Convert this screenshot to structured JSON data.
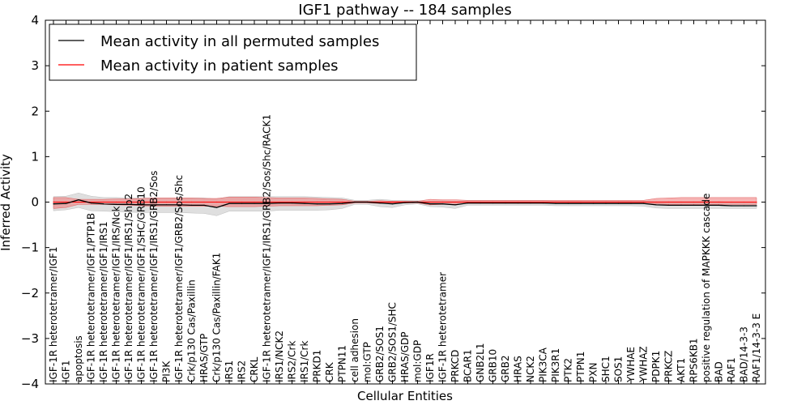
{
  "chart_data": {
    "type": "line",
    "title": "IGF1 pathway -- 184 samples",
    "xlabel": "Cellular Entities",
    "ylabel": "Inferred Activity",
    "ylim": [
      -4,
      4
    ],
    "yticks": [
      -4,
      -3,
      -2,
      -1,
      0,
      1,
      2,
      3,
      4
    ],
    "ytick_labels": [
      "−4",
      "−3",
      "−2",
      "−1",
      "0",
      "1",
      "2",
      "3",
      "4"
    ],
    "legend_position": "top-left",
    "categories": [
      "IGF-1R heterotetramer/IGF1",
      "IGF1",
      "apoptosis",
      "IGF-1R heterotetramer/IGF1/PTP1B",
      "IGF-1R heterotetramer/IGF1/IRS1",
      "IGF-1R heterotetramer/IGF1/IRS/Nck",
      "IGF-1R heterotetramer/IGF1/IRS1/Shp2",
      "IGF-1R heterotetramer/IGF1/SHC/GRB10",
      "IGF-1R heterotetramer/IGF1/IRS1/GRB2/Sos",
      "PI3K",
      "IGF-1R heterotetramer/IGF1/GRB2/Sos/Shc",
      "Crk/p130 Cas/Paxillin",
      "HRAS/GTP",
      "Crk/p130 Cas/Paxillin/FAK1",
      "IRS1",
      "IRS2",
      "CRKL",
      "IGF-1R heterotetramer/IGF1/IRS1/GRB2/Sos/Shc/RACK1",
      "IRS1/NCK2",
      "IRS2/Crk",
      "IRS1/Crk",
      "PRKD1",
      "CRK",
      "PTPN11",
      "cell adhesion",
      "mol:GTP",
      "GRB2/SOS1",
      "GRB2/SOS1/SHC",
      "HRAS/GDP",
      "mol:GDP",
      "IGF1R",
      "IGF-1R heterotetramer",
      "PRKCD",
      "BCAR1",
      "GNB2L1",
      "GRB10",
      "GRB2",
      "HRAS",
      "NCK2",
      "PIK3CA",
      "PIK3R1",
      "PTK2",
      "PTPN1",
      "PXN",
      "SHC1",
      "SOS1",
      "YWHAE",
      "YWHAZ",
      "PDPK1",
      "PRKCZ",
      "AKT1",
      "RPS6KB1",
      "positive regulation of MAPKKK cascade",
      "BAD",
      "RAF1",
      "BAD/14-3-3",
      "RAF1/14-3-3 E"
    ],
    "series": [
      {
        "name": "Mean activity in all permuted samples",
        "color": "#000000",
        "values": [
          -0.04,
          -0.03,
          0.05,
          -0.02,
          -0.04,
          -0.05,
          -0.05,
          -0.06,
          -0.06,
          -0.06,
          -0.06,
          -0.07,
          -0.07,
          -0.12,
          -0.03,
          -0.03,
          -0.03,
          -0.03,
          -0.02,
          -0.02,
          -0.03,
          -0.04,
          -0.04,
          -0.03,
          0.0,
          0.0,
          -0.02,
          -0.04,
          -0.01,
          0.0,
          -0.04,
          -0.04,
          -0.06,
          -0.02,
          -0.02,
          -0.02,
          -0.02,
          -0.02,
          -0.02,
          -0.02,
          -0.03,
          -0.03,
          -0.03,
          -0.03,
          -0.03,
          -0.03,
          -0.03,
          -0.03,
          -0.06,
          -0.07,
          -0.07,
          -0.07,
          -0.07,
          -0.07,
          -0.08,
          -0.08,
          -0.08
        ],
        "band_low": [
          -0.19,
          -0.17,
          -0.12,
          -0.19,
          -0.2,
          -0.21,
          -0.22,
          -0.23,
          -0.23,
          -0.23,
          -0.23,
          -0.24,
          -0.25,
          -0.3,
          -0.2,
          -0.2,
          -0.2,
          -0.2,
          -0.18,
          -0.18,
          -0.18,
          -0.18,
          -0.17,
          -0.14,
          -0.05,
          -0.05,
          -0.1,
          -0.12,
          -0.06,
          -0.04,
          -0.1,
          -0.11,
          -0.14,
          -0.07,
          -0.07,
          -0.07,
          -0.07,
          -0.07,
          -0.07,
          -0.07,
          -0.08,
          -0.08,
          -0.08,
          -0.08,
          -0.08,
          -0.08,
          -0.08,
          -0.09,
          -0.13,
          -0.14,
          -0.14,
          -0.14,
          -0.14,
          -0.14,
          -0.14,
          -0.14,
          -0.14
        ],
        "band_high": [
          0.12,
          0.13,
          0.2,
          0.13,
          0.1,
          0.1,
          0.09,
          0.09,
          0.09,
          0.09,
          0.09,
          0.09,
          0.09,
          0.07,
          0.12,
          0.12,
          0.12,
          0.12,
          0.12,
          0.12,
          0.12,
          0.11,
          0.1,
          0.09,
          0.04,
          0.04,
          0.06,
          0.04,
          0.04,
          0.03,
          0.02,
          0.03,
          0.02,
          0.03,
          0.03,
          0.03,
          0.03,
          0.03,
          0.03,
          0.03,
          0.02,
          0.02,
          0.02,
          0.02,
          0.02,
          0.02,
          0.02,
          0.02,
          0.01,
          0.01,
          0.01,
          0.01,
          0.01,
          0.01,
          0.0,
          0.0,
          0.0
        ]
      },
      {
        "name": "Mean activity in patient samples",
        "color": "#ff0000",
        "values": [
          0.0,
          0.0,
          0.0,
          0.0,
          0.0,
          0.0,
          0.0,
          0.0,
          0.0,
          0.0,
          0.0,
          0.0,
          0.0,
          0.0,
          0.0,
          0.0,
          0.0,
          0.0,
          0.0,
          0.0,
          0.0,
          0.0,
          0.0,
          0.0,
          0.0,
          0.0,
          0.0,
          0.0,
          0.0,
          0.0,
          0.0,
          0.0,
          0.0,
          0.0,
          0.0,
          0.0,
          0.0,
          0.0,
          0.0,
          0.0,
          0.0,
          0.0,
          0.0,
          0.0,
          0.0,
          0.0,
          0.0,
          0.0,
          0.0,
          0.0,
          0.0,
          0.0,
          0.0,
          0.0,
          0.0,
          0.0,
          0.0
        ],
        "band_low": [
          -0.14,
          -0.12,
          -0.05,
          -0.05,
          -0.05,
          -0.06,
          -0.07,
          -0.08,
          -0.09,
          -0.09,
          -0.09,
          -0.09,
          -0.09,
          -0.09,
          -0.1,
          -0.1,
          -0.1,
          -0.09,
          -0.08,
          -0.08,
          -0.08,
          -0.08,
          -0.07,
          -0.06,
          -0.02,
          -0.02,
          -0.03,
          -0.02,
          -0.02,
          -0.02,
          -0.06,
          -0.05,
          -0.05,
          -0.03,
          -0.03,
          -0.03,
          -0.03,
          -0.03,
          -0.03,
          -0.03,
          -0.03,
          -0.03,
          -0.03,
          -0.03,
          -0.03,
          -0.03,
          -0.03,
          -0.03,
          -0.04,
          -0.05,
          -0.05,
          -0.05,
          -0.05,
          -0.05,
          -0.05,
          -0.05,
          -0.05
        ],
        "band_high": [
          0.1,
          0.1,
          0.06,
          0.06,
          0.06,
          0.07,
          0.07,
          0.08,
          0.09,
          0.09,
          0.09,
          0.09,
          0.08,
          0.08,
          0.11,
          0.11,
          0.11,
          0.1,
          0.09,
          0.09,
          0.09,
          0.08,
          0.07,
          0.06,
          0.02,
          0.02,
          0.03,
          0.02,
          0.02,
          0.02,
          0.06,
          0.05,
          0.05,
          0.04,
          0.04,
          0.04,
          0.04,
          0.04,
          0.04,
          0.04,
          0.04,
          0.04,
          0.04,
          0.04,
          0.04,
          0.04,
          0.04,
          0.04,
          0.08,
          0.09,
          0.1,
          0.1,
          0.1,
          0.1,
          0.1,
          0.1,
          0.1
        ]
      }
    ]
  }
}
